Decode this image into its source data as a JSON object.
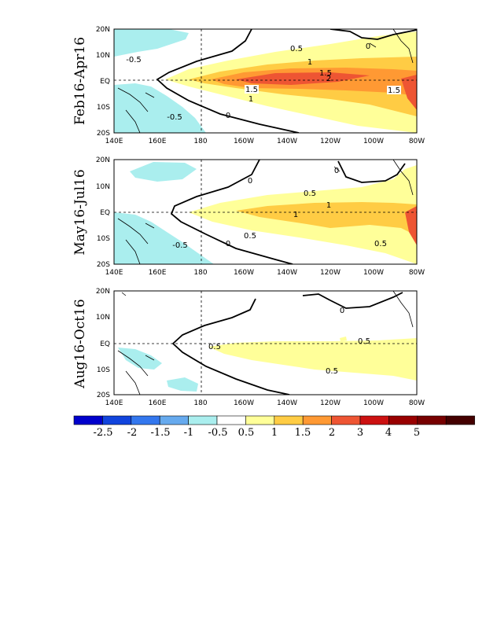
{
  "colors": {
    "land_outline": "#000000",
    "neg_0_5": "#aaeeee",
    "pos_0_5": "#ffff99",
    "pos_1": "#ffcc44",
    "pos_1_5": "#ff9933",
    "pos_2": "#ee5533"
  },
  "axes": {
    "x_ticks": [
      "140E",
      "160E",
      "180",
      "160W",
      "140W",
      "120W",
      "100W",
      "80W"
    ],
    "y_ticks": [
      "20N",
      "10N",
      "EQ",
      "10S",
      "20S"
    ]
  },
  "panels": [
    {
      "label": "Feb16-Apr16",
      "contour_labels": [
        "-0.5",
        "0.5",
        "1",
        "1.5",
        "2",
        "1.5",
        "1.5",
        "1",
        "-0.5",
        "0",
        "0"
      ]
    },
    {
      "label": "May16-Jul16",
      "contour_labels": [
        "0",
        "0.5",
        "1",
        "1",
        "0.5",
        "-0.5",
        "0",
        "0.5",
        "0"
      ]
    },
    {
      "label": "Aug16-Oct16",
      "contour_labels": [
        "0.5",
        "0.5",
        "0.5",
        "0"
      ]
    }
  ],
  "colorbar": {
    "colors": [
      "#0000cc",
      "#1144dd",
      "#3377ee",
      "#66aaee",
      "#aaeeee",
      "#ffffff",
      "#ffff99",
      "#ffcc44",
      "#ff9933",
      "#ee5533",
      "#cc1111",
      "#990000",
      "#770000",
      "#440000"
    ],
    "labels": [
      "-2.5",
      "-2",
      "-1.5",
      "-1",
      "-0.5",
      "0.5",
      "1",
      "1.5",
      "2",
      "3",
      "4",
      "5"
    ]
  }
}
